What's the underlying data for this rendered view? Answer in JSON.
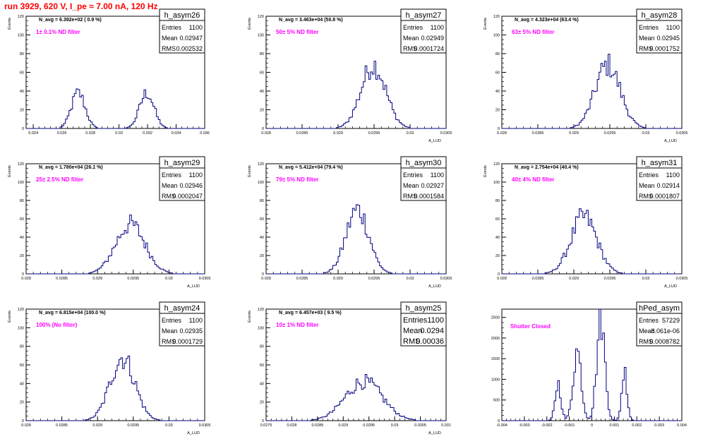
{
  "page": {
    "title": "run 3929,   620 V, I_pe ≈ 7.00 nA, 120 Hz"
  },
  "chart_data": [
    {
      "type": "histogram",
      "name": "h_asym26",
      "yaxis_title": "Events",
      "xaxis_title": "",
      "xlim": [
        0.0235,
        0.036
      ],
      "ylim": [
        0,
        120
      ],
      "xticks": [
        "0.024",
        "0.026",
        "0.028",
        "0.03",
        "0.032",
        "0.034",
        "0.036"
      ],
      "yticks": [
        "0",
        "20",
        "40",
        "60",
        "80",
        "100",
        "120"
      ],
      "stats": {
        "entries": "1100",
        "mean": "0.02947",
        "rms": "0.002532"
      },
      "n_avg": "N_avg = 6.392e+02 ( 0.9 %)",
      "filter": "1± 0.1% ND filter",
      "shape": [
        {
          "mu": 0.02715,
          "sigma": 0.00048,
          "peak": 38
        },
        {
          "mu": 0.03195,
          "sigma": 0.0005,
          "peak": 38
        }
      ]
    },
    {
      "type": "histogram",
      "name": "h_asym27",
      "yaxis_title": "Events",
      "xaxis_title": "A_LUD",
      "xlim": [
        0.028,
        0.0305
      ],
      "ylim": [
        0,
        120
      ],
      "xticks": [
        "0.028",
        "0.0285",
        "0.029",
        "0.0295",
        "0.03",
        "0.0305"
      ],
      "yticks": [
        "0",
        "20",
        "40",
        "60",
        "80",
        "100",
        "120"
      ],
      "stats": {
        "entries": "1100",
        "mean": "0.02949",
        "rms": "0.0001724"
      },
      "n_avg": "N_avg = 3.463e+04 (50.8 %)",
      "filter": "50± 5% ND filter",
      "shape": [
        {
          "mu": 0.02949,
          "sigma": 0.000172,
          "peak": 68
        }
      ]
    },
    {
      "type": "histogram",
      "name": "h_asym28",
      "yaxis_title": "Events",
      "xaxis_title": "A_LUD",
      "xlim": [
        0.028,
        0.0305
      ],
      "ylim": [
        0,
        120
      ],
      "xticks": [
        "0.028",
        "0.0285",
        "0.029",
        "0.0295",
        "0.03",
        "0.0305"
      ],
      "yticks": [
        "0",
        "20",
        "40",
        "60",
        "80",
        "100",
        "120"
      ],
      "stats": {
        "entries": "1100",
        "mean": "0.02945",
        "rms": "0.0001752"
      },
      "n_avg": "N_avg = 4.323e+04 (63.4 %)",
      "filter": "63± 5% ND filter",
      "shape": [
        {
          "mu": 0.02947,
          "sigma": 0.000175,
          "peak": 68
        }
      ]
    },
    {
      "type": "histogram",
      "name": "h_asym29",
      "yaxis_title": "Events",
      "xaxis_title": "A_LUD",
      "xlim": [
        0.028,
        0.0305
      ],
      "ylim": [
        0,
        120
      ],
      "xticks": [
        "0.028",
        "0.0285",
        "0.029",
        "0.0295",
        "0.03",
        "0.0305"
      ],
      "yticks": [
        "0",
        "20",
        "40",
        "60",
        "80",
        "100",
        "120"
      ],
      "stats": {
        "entries": "1100",
        "mean": "0.02946",
        "rms": "0.0002047"
      },
      "n_avg": "N_avg = 1.780e+04 (26.1 %)",
      "filter": "25± 2.5% ND filter",
      "shape": [
        {
          "mu": 0.02946,
          "sigma": 0.000205,
          "peak": 54
        }
      ]
    },
    {
      "type": "histogram",
      "name": "h_asym30",
      "yaxis_title": "Events",
      "xaxis_title": "A_LUD",
      "xlim": [
        0.028,
        0.0305
      ],
      "ylim": [
        0,
        120
      ],
      "xticks": [
        "0.028",
        "0.0285",
        "0.029",
        "0.0295",
        "0.03",
        "0.0305"
      ],
      "yticks": [
        "0",
        "20",
        "40",
        "60",
        "80",
        "100",
        "120"
      ],
      "stats": {
        "entries": "1100",
        "mean": "0.02927",
        "rms": "0.0001584"
      },
      "n_avg": "N_avg = 5.412e+04 (79.4 %)",
      "filter": "79± 5% ND filter",
      "shape": [
        {
          "mu": 0.02927,
          "sigma": 0.000158,
          "peak": 70
        }
      ]
    },
    {
      "type": "histogram",
      "name": "h_asym31",
      "yaxis_title": "Events",
      "xaxis_title": "A_LUD",
      "xlim": [
        0.028,
        0.0305
      ],
      "ylim": [
        0,
        120
      ],
      "xticks": [
        "0.028",
        "0.0285",
        "0.029",
        "0.0295",
        "0.03",
        "0.0305"
      ],
      "yticks": [
        "0",
        "20",
        "40",
        "60",
        "80",
        "100",
        "120"
      ],
      "stats": {
        "entries": "1100",
        "mean": "0.02914",
        "rms": "0.0001807"
      },
      "n_avg": "N_avg = 2.754e+04 (40.4 %)",
      "filter": "40± 4% ND filter",
      "shape": [
        {
          "mu": 0.02914,
          "sigma": 0.00018,
          "peak": 62
        }
      ]
    },
    {
      "type": "histogram",
      "name": "h_asym24",
      "yaxis_title": "Events",
      "xaxis_title": "A_LUD",
      "xlim": [
        0.028,
        0.0305
      ],
      "ylim": [
        0,
        120
      ],
      "xticks": [
        "0.028",
        "0.0285",
        "0.029",
        "0.0295",
        "0.03",
        "0.0305"
      ],
      "yticks": [
        "0",
        "20",
        "40",
        "60",
        "80",
        "100",
        "120"
      ],
      "stats": {
        "entries": "1100",
        "mean": "0.02935",
        "rms": "0.0001729"
      },
      "n_avg": "N_avg = 6.815e+04 (100.0 %)",
      "filter": "100% (No filter)",
      "shape": [
        {
          "mu": 0.02935,
          "sigma": 0.000173,
          "peak": 68
        }
      ]
    },
    {
      "type": "histogram",
      "name": "h_asym25",
      "yaxis_title": "Events",
      "xaxis_title": "A_LUD",
      "xlim": [
        0.0275,
        0.031
      ],
      "ylim": [
        0,
        120
      ],
      "xticks": [
        "0.0275",
        "0.028",
        "0.0285",
        "0.029",
        "0.0295",
        "0.03",
        "0.0305",
        "0.031"
      ],
      "yticks": [
        "0",
        "20",
        "40",
        "60",
        "80",
        "100",
        "120"
      ],
      "stats": {
        "entries": "1100",
        "mean": "0.0294",
        "rms": "0.00036"
      },
      "n_avg": "N_avg = 6.457e+03 ( 9.5 %)",
      "filter": "10± 1% ND filter",
      "shape": [
        {
          "mu": 0.0294,
          "sigma": 0.00036,
          "peak": 42
        }
      ]
    },
    {
      "type": "histogram",
      "name": "hPed_asym",
      "yaxis_title": "",
      "xaxis_title": "",
      "xlim": [
        -0.004,
        0.004
      ],
      "ylim": [
        0,
        2700
      ],
      "xticks": [
        "-0.004",
        "-0.003",
        "-0.002",
        "-0.001",
        "0",
        "0.001",
        "0.002",
        "0.003",
        "0.004"
      ],
      "yticks": [
        "0",
        "500",
        "1000",
        "1500",
        "2000",
        "2500"
      ],
      "stats": {
        "entries": "57229",
        "mean": "-8.061e-06",
        "rms": "0.0008782"
      },
      "n_avg": "",
      "filter": "Shutter Closed",
      "shape": [
        {
          "mu": -0.0015,
          "sigma": 0.00013,
          "peak": 900
        },
        {
          "mu": -0.00065,
          "sigma": 0.00018,
          "peak": 1700
        },
        {
          "mu": 0.0004,
          "sigma": 0.00018,
          "peak": 2450
        },
        {
          "mu": 0.00145,
          "sigma": 0.00012,
          "peak": 1200
        }
      ]
    }
  ]
}
